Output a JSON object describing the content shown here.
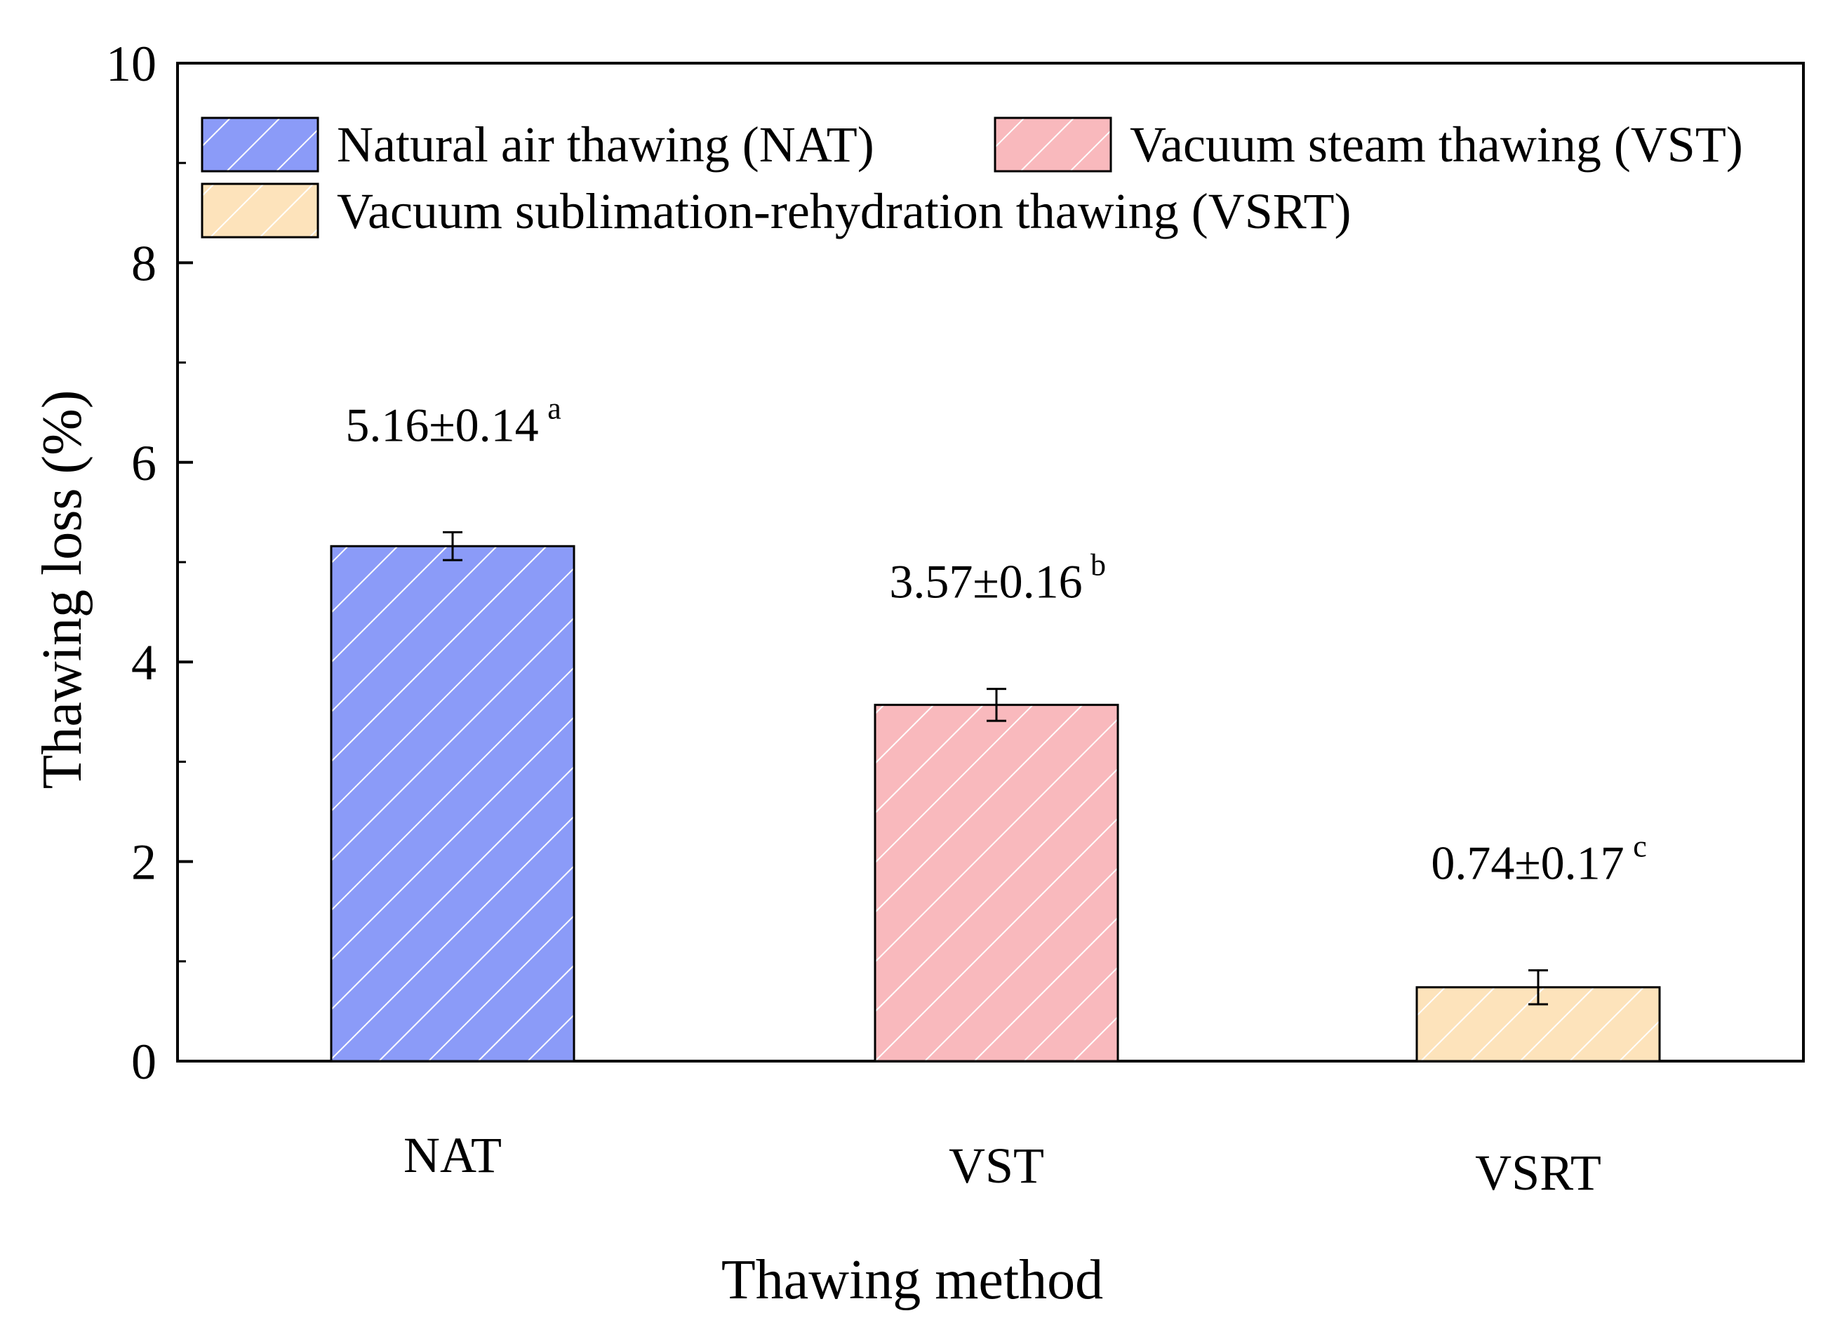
{
  "chart_data": {
    "type": "bar",
    "categories": [
      "NAT",
      "VST",
      "VSRT"
    ],
    "values": [
      5.16,
      3.57,
      0.74
    ],
    "errors": [
      0.14,
      0.16,
      0.17
    ],
    "data_labels": [
      "5.16±0.14",
      "3.57±0.16",
      "0.74±0.17"
    ],
    "significance": [
      "a",
      "b",
      "c"
    ],
    "colors": [
      "#8b9bf8",
      "#f9b9bd",
      "#fde3bb"
    ],
    "pattern": "diagonal-hatch-white",
    "xlabel": "Thawing method",
    "ylabel": "Thawing loss (%)",
    "ylim": [
      0,
      10
    ],
    "yticks": [
      "0",
      "2",
      "4",
      "6",
      "8",
      "10"
    ],
    "legend": {
      "placement": "top",
      "entries": [
        "Natural air thawing (NAT)",
        "Vacuum steam thawing (VST)",
        "Vacuum sublimation-rehydration thawing (VSRT)"
      ]
    },
    "grid": false
  }
}
